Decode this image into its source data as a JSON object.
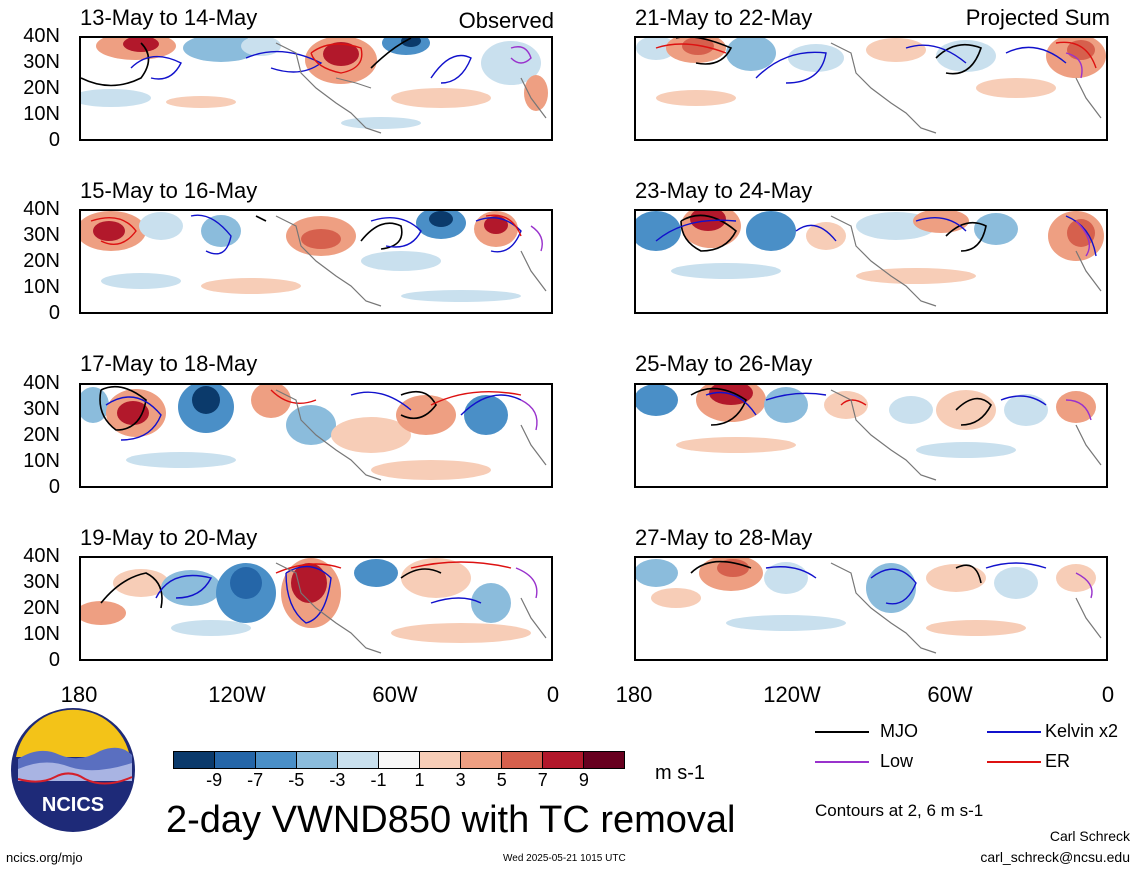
{
  "panels": {
    "left": [
      {
        "title": "13-May to 14-May",
        "tag": "Observed"
      },
      {
        "title": "15-May to 16-May",
        "tag": ""
      },
      {
        "title": "17-May to 18-May",
        "tag": ""
      },
      {
        "title": "19-May to 20-May",
        "tag": ""
      }
    ],
    "right": [
      {
        "title": "21-May to 22-May",
        "tag": "Projected Sum"
      },
      {
        "title": "23-May to 24-May",
        "tag": ""
      },
      {
        "title": "25-May to 26-May",
        "tag": ""
      },
      {
        "title": "27-May to 28-May",
        "tag": ""
      }
    ]
  },
  "axes": {
    "lat_labels": [
      "40N",
      "30N",
      "20N",
      "10N",
      "0"
    ],
    "lon_labels": [
      "180",
      "120W",
      "60W",
      "0"
    ]
  },
  "colorbar": {
    "ticks": [
      "-9",
      "-7",
      "-5",
      "-3",
      "-1",
      "1",
      "3",
      "5",
      "7",
      "9"
    ],
    "colors": [
      "#0b3a6b",
      "#2566a8",
      "#4a8fc7",
      "#8bbcdc",
      "#c9e0ee",
      "#f7f7f7",
      "#f7cdb7",
      "#ee9f82",
      "#d6604d",
      "#b2182b",
      "#67001f"
    ],
    "unit": "m s-1"
  },
  "legend": {
    "items": [
      {
        "label": "MJO",
        "color": "#000000"
      },
      {
        "label": "Kelvin x2",
        "color": "#1111cc"
      },
      {
        "label": "Low",
        "color": "#9932cc"
      },
      {
        "label": "ER",
        "color": "#dd1111"
      }
    ],
    "note": "Contours at 2, 6 m s-1"
  },
  "title": "2-day VWND850 with TC removal",
  "logo_text": "NCICS",
  "footer": {
    "url": "ncics.org/mjo",
    "timestamp": "Wed 2025-05-21 1015 UTC",
    "author": "Carl Schreck",
    "email": "carl_schreck@ncsu.edu"
  }
}
